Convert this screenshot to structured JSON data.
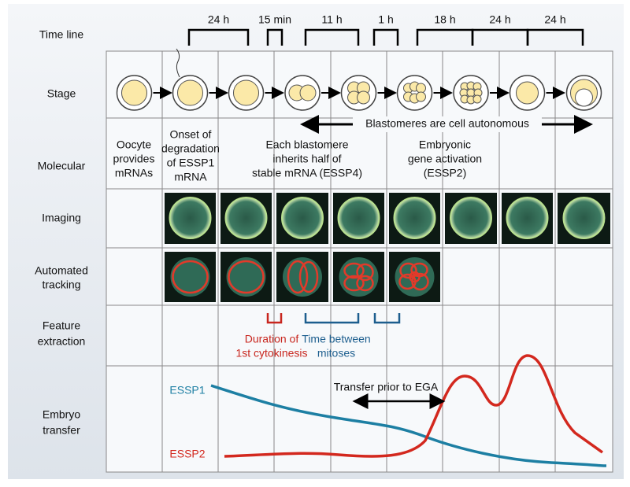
{
  "row_labels": [
    [
      "Time line"
    ],
    [
      "Stage"
    ],
    [
      "Molecular"
    ],
    [
      "Imaging"
    ],
    [
      "Automated",
      "tracking"
    ],
    [
      "Feature",
      "extraction"
    ],
    [
      "Embryo",
      "transfer"
    ]
  ],
  "timeline": [
    "24 h",
    "15 min",
    "11 h",
    "1 h",
    "18 h",
    "24 h",
    "24 h"
  ],
  "stage_banner": "Blastomeres are cell autonomous",
  "molecular": [
    [
      "Oocyte",
      "provides",
      "mRNAs"
    ],
    [
      "Onset of",
      "degradation",
      "of ESSP1",
      "mRNA"
    ],
    [
      "Each blastomere",
      "inherits half of",
      "stable mRNA (ESSP4)"
    ],
    [
      "Embryonic",
      "gene activation",
      "(ESSP2)"
    ]
  ],
  "features": [
    [
      "Duration of",
      "1st cytokinesis"
    ],
    [
      "Time between",
      "mitoses"
    ]
  ],
  "embryo_transfer": {
    "series": [
      "ESSP1",
      "ESSP2"
    ],
    "annotation": "Transfer prior to EGA"
  }
}
